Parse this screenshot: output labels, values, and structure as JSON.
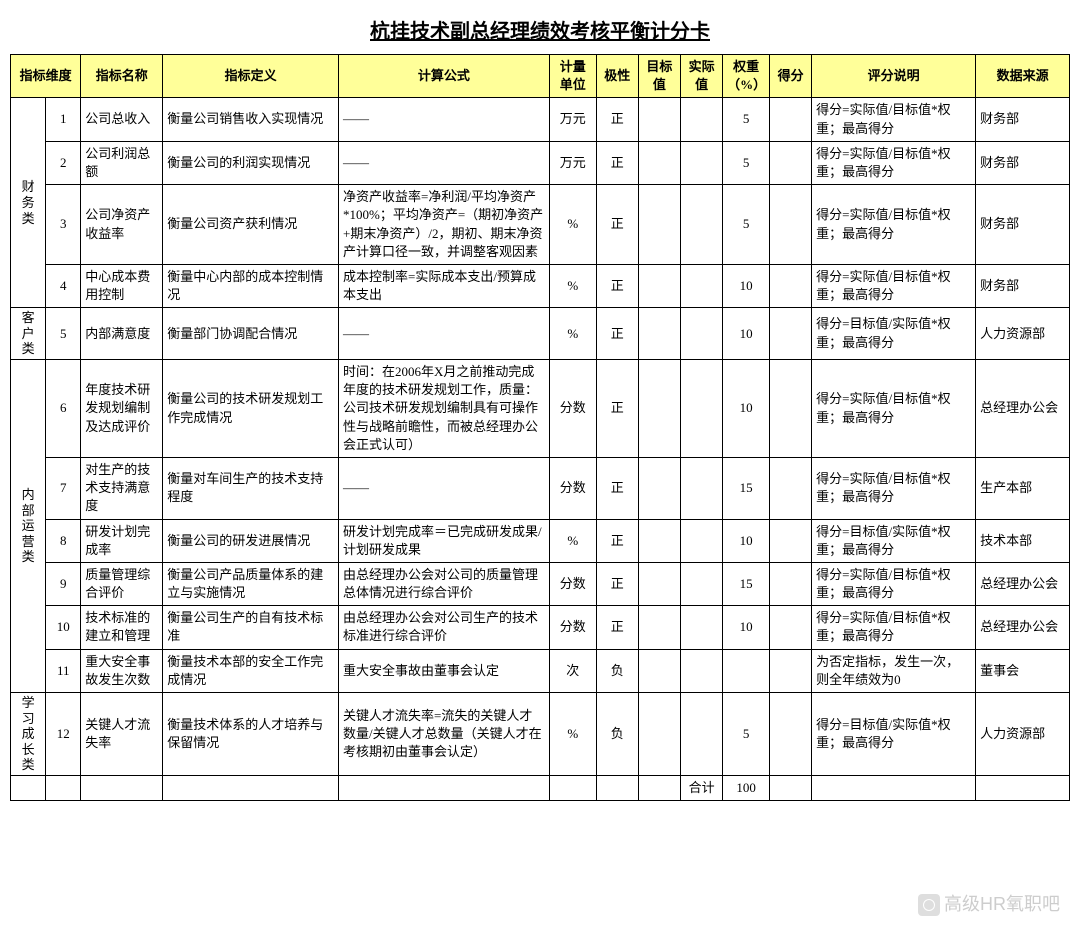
{
  "title": "杭挂技术副总经理绩效考核平衡计分卡",
  "headers": {
    "dim": "指标维度",
    "name": "指标名称",
    "def": "指标定义",
    "formula": "计算公式",
    "unit": "计量单位",
    "pol": "极性",
    "tgt": "目标值",
    "act": "实际值",
    "wgt": "权重（%）",
    "score": "得分",
    "desc": "评分说明",
    "src": "数据来源"
  },
  "dims": {
    "d1": "财务类",
    "d2": "客户类",
    "d3": "内部运营类",
    "d4": "学习成长类"
  },
  "rows": {
    "r1": {
      "n": "1",
      "name": "公司总收入",
      "def": "衡量公司销售收入实现情况",
      "formula": "——",
      "unit": "万元",
      "pol": "正",
      "tgt": "",
      "act": "",
      "wgt": "5",
      "score": "",
      "desc": "得分=实际值/目标值*权重；最高得分",
      "src": "财务部"
    },
    "r2": {
      "n": "2",
      "name": "公司利润总额",
      "def": "衡量公司的利润实现情况",
      "formula": "——",
      "unit": "万元",
      "pol": "正",
      "tgt": "",
      "act": "",
      "wgt": "5",
      "score": "",
      "desc": "得分=实际值/目标值*权重；最高得分",
      "src": "财务部"
    },
    "r3": {
      "n": "3",
      "name": "公司净资产收益率",
      "def": "衡量公司资产获利情况",
      "formula": "净资产收益率=净利润/平均净资产*100%；平均净资产=（期初净资产+期末净资产）/2，期初、期末净资产计算口径一致，并调整客观因素",
      "unit": "%",
      "pol": "正",
      "tgt": "",
      "act": "",
      "wgt": "5",
      "score": "",
      "desc": "得分=实际值/目标值*权重；最高得分",
      "src": "财务部"
    },
    "r4": {
      "n": "4",
      "name": "中心成本费用控制",
      "def": "衡量中心内部的成本控制情况",
      "formula": "成本控制率=实际成本支出/预算成本支出",
      "unit": "%",
      "pol": "正",
      "tgt": "",
      "act": "",
      "wgt": "10",
      "score": "",
      "desc": "得分=实际值/目标值*权重；最高得分",
      "src": "财务部"
    },
    "r5": {
      "n": "5",
      "name": "内部满意度",
      "def": "衡量部门协调配合情况",
      "formula": "——",
      "unit": "%",
      "pol": "正",
      "tgt": "",
      "act": "",
      "wgt": "10",
      "score": "",
      "desc": "得分=目标值/实际值*权重；最高得分",
      "src": "人力资源部"
    },
    "r6": {
      "n": "6",
      "name": "年度技术研发规划编制及达成评价",
      "def": "衡量公司的技术研发规划工作完成情况",
      "formula": "时间：在2006年X月之前推动完成年度的技术研发规划工作，质量：公司技术研发规划编制具有可操作性与战略前瞻性，而被总经理办公会正式认可）",
      "unit": "分数",
      "pol": "正",
      "tgt": "",
      "act": "",
      "wgt": "10",
      "score": "",
      "desc": "得分=实际值/目标值*权重；最高得分",
      "src": "总经理办公会"
    },
    "r7": {
      "n": "7",
      "name": "对生产的技术支持满意度",
      "def": "衡量对车间生产的技术支持程度",
      "formula": "——",
      "unit": "分数",
      "pol": "正",
      "tgt": "",
      "act": "",
      "wgt": "15",
      "score": "",
      "desc": "得分=实际值/目标值*权重；最高得分",
      "src": "生产本部"
    },
    "r8": {
      "n": "8",
      "name": "研发计划完成率",
      "def": "衡量公司的研发进展情况",
      "formula": "研发计划完成率＝已完成研发成果/计划研发成果",
      "unit": "%",
      "pol": "正",
      "tgt": "",
      "act": "",
      "wgt": "10",
      "score": "",
      "desc": "得分=目标值/实际值*权重；最高得分",
      "src": "技术本部"
    },
    "r9": {
      "n": "9",
      "name": "质量管理综合评价",
      "def": "衡量公司产品质量体系的建立与实施情况",
      "formula": "由总经理办公会对公司的质量管理总体情况进行综合评价",
      "unit": "分数",
      "pol": "正",
      "tgt": "",
      "act": "",
      "wgt": "15",
      "score": "",
      "desc": "得分=实际值/目标值*权重；最高得分",
      "src": "总经理办公会"
    },
    "r10": {
      "n": "10",
      "name": "技术标准的建立和管理",
      "def": "衡量公司生产的自有技术标准",
      "formula": "由总经理办公会对公司生产的技术标准进行综合评价",
      "unit": "分数",
      "pol": "正",
      "tgt": "",
      "act": "",
      "wgt": "10",
      "score": "",
      "desc": "得分=实际值/目标值*权重；最高得分",
      "src": "总经理办公会"
    },
    "r11": {
      "n": "11",
      "name": "重大安全事故发生次数",
      "def": "衡量技术本部的安全工作完成情况",
      "formula": "重大安全事故由董事会认定",
      "unit": "次",
      "pol": "负",
      "tgt": "",
      "act": "",
      "wgt": "",
      "score": "",
      "desc": "为否定指标，发生一次，则全年绩效为0",
      "src": "董事会"
    },
    "r12": {
      "n": "12",
      "name": "关键人才流失率",
      "def": "衡量技术体系的人才培养与保留情况",
      "formula": "关键人才流失率=流失的关键人才数量/关键人才总数量（关键人才在考核期初由董事会认定）",
      "unit": "%",
      "pol": "负",
      "tgt": "",
      "act": "",
      "wgt": "5",
      "score": "",
      "desc": "得分=目标值/实际值*权重；最高得分",
      "src": "人力资源部"
    }
  },
  "total": {
    "label": "合计",
    "value": "100"
  },
  "watermark": "高级HR氧职吧"
}
